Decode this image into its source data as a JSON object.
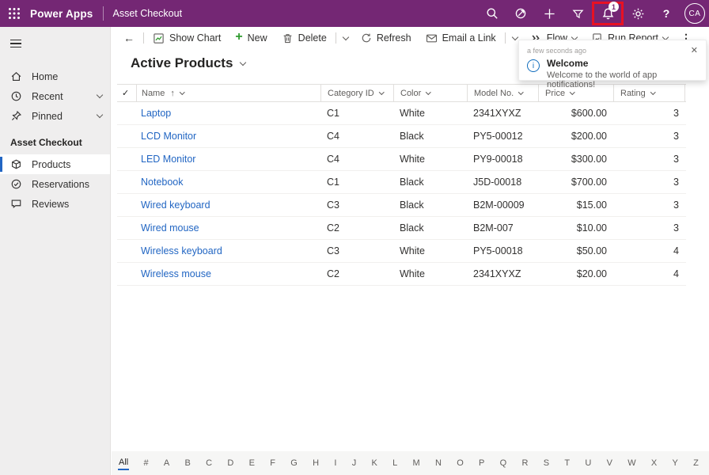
{
  "topbar": {
    "brand": "Power Apps",
    "app_name": "Asset Checkout",
    "notification_badge": "1",
    "avatar_initials": "CA",
    "help_glyph": "?"
  },
  "commandbar": {
    "back_glyph": "←",
    "show_chart": "Show Chart",
    "new": "New",
    "delete": "Delete",
    "refresh": "Refresh",
    "email_a_link": "Email a Link",
    "flow": "Flow",
    "run_report": "Run Report",
    "more_glyph": "⋮"
  },
  "sidebar": {
    "items": [
      {
        "label": "Home"
      },
      {
        "label": "Recent"
      },
      {
        "label": "Pinned"
      }
    ],
    "group_label": "Asset Checkout",
    "group_items": [
      {
        "label": "Products",
        "selected": true
      },
      {
        "label": "Reservations"
      },
      {
        "label": "Reviews"
      }
    ]
  },
  "view": {
    "title": "Active Products"
  },
  "table": {
    "select_all_glyph": "✓",
    "sort_arrow": "↑",
    "columns": [
      "Name",
      "Category ID",
      "Color",
      "Model No.",
      "Price",
      "Rating"
    ],
    "rows": [
      {
        "name": "Laptop",
        "category_id": "C1",
        "color": "White",
        "model_no": "2341XYXZ",
        "price": "$600.00",
        "rating": "3"
      },
      {
        "name": "LCD Monitor",
        "category_id": "C4",
        "color": "Black",
        "model_no": "PY5-00012",
        "price": "$200.00",
        "rating": "3"
      },
      {
        "name": "LED Monitor",
        "category_id": "C4",
        "color": "White",
        "model_no": "PY9-00018",
        "price": "$300.00",
        "rating": "3"
      },
      {
        "name": "Notebook",
        "category_id": "C1",
        "color": "Black",
        "model_no": "J5D-00018",
        "price": "$700.00",
        "rating": "3"
      },
      {
        "name": "Wired keyboard",
        "category_id": "C3",
        "color": "Black",
        "model_no": "B2M-00009",
        "price": "$15.00",
        "rating": "3"
      },
      {
        "name": "Wired mouse",
        "category_id": "C2",
        "color": "Black",
        "model_no": "B2M-007",
        "price": "$10.00",
        "rating": "3"
      },
      {
        "name": "Wireless keyboard",
        "category_id": "C3",
        "color": "White",
        "model_no": "PY5-00018",
        "price": "$50.00",
        "rating": "4"
      },
      {
        "name": "Wireless mouse",
        "category_id": "C2",
        "color": "White",
        "model_no": "2341XYXZ",
        "price": "$20.00",
        "rating": "4"
      }
    ]
  },
  "notification": {
    "time_ago": "a few seconds ago",
    "title": "Welcome",
    "message": "Welcome to the world of app notifications!",
    "close_glyph": "✕",
    "info_glyph": "i"
  },
  "jumpbar": {
    "items": [
      "All",
      "#",
      "A",
      "B",
      "C",
      "D",
      "E",
      "F",
      "G",
      "H",
      "I",
      "J",
      "K",
      "L",
      "M",
      "N",
      "O",
      "P",
      "Q",
      "R",
      "S",
      "T",
      "U",
      "V",
      "W",
      "X",
      "Y",
      "Z"
    ]
  },
  "colors": {
    "brand_purple": "#742774",
    "link_blue": "#2266c3",
    "selected_indicator_blue": "#2266c3",
    "highlight_red": "#e81123",
    "info_blue": "#0f6cbd"
  }
}
